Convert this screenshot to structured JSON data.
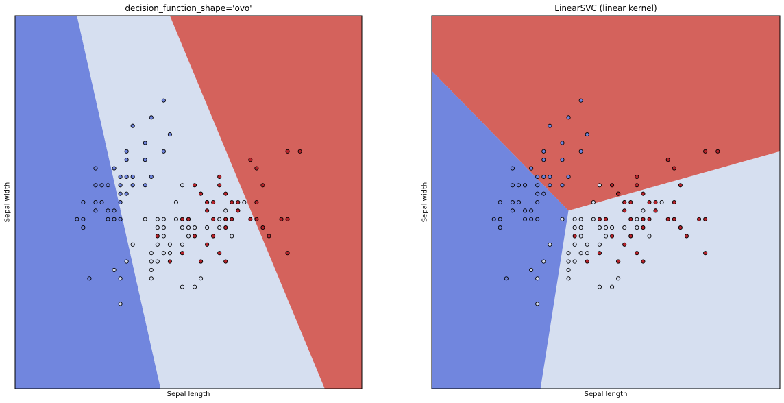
{
  "chart_data": [
    {
      "type": "scatter",
      "title": "decision_function_shape='ovo'",
      "xlabel": "Sepal length",
      "ylabel": "Sepal width",
      "xlim": [
        3.3,
        8.9
      ],
      "ylim": [
        1.0,
        5.4
      ],
      "grid": false,
      "region_colors": {
        "0": "#7186de",
        "1": "#d6dff0",
        "2": "#d4625c"
      },
      "boundaries": {
        "class0_class1": [
          [
            4.3,
            5.4
          ],
          [
            5.65,
            1.0
          ]
        ],
        "class1_class2": [
          [
            5.8,
            5.4
          ],
          [
            8.3,
            1.0
          ]
        ]
      },
      "series": [
        {
          "class": 0,
          "color": "#6f84dc",
          "points": [
            [
              4.3,
              3.0
            ],
            [
              4.4,
              2.9
            ],
            [
              4.4,
              3.0
            ],
            [
              4.4,
              3.2
            ],
            [
              4.5,
              2.3
            ],
            [
              4.6,
              3.1
            ],
            [
              4.6,
              3.2
            ],
            [
              4.6,
              3.4
            ],
            [
              4.6,
              3.6
            ],
            [
              4.7,
              3.2
            ],
            [
              4.7,
              3.4
            ],
            [
              4.8,
              3.0
            ],
            [
              4.8,
              3.1
            ],
            [
              4.8,
              3.4
            ],
            [
              4.9,
              3.0
            ],
            [
              4.9,
              3.1
            ],
            [
              4.9,
              3.6
            ],
            [
              5.0,
              3.0
            ],
            [
              5.0,
              3.2
            ],
            [
              5.0,
              3.3
            ],
            [
              5.0,
              3.4
            ],
            [
              5.0,
              3.5
            ],
            [
              5.1,
              3.3
            ],
            [
              5.1,
              3.5
            ],
            [
              5.1,
              3.7
            ],
            [
              5.1,
              3.8
            ],
            [
              5.2,
              3.4
            ],
            [
              5.2,
              3.5
            ],
            [
              5.4,
              3.4
            ],
            [
              5.4,
              3.7
            ],
            [
              5.4,
              3.9
            ],
            [
              5.5,
              3.5
            ],
            [
              5.5,
              4.2
            ],
            [
              5.7,
              3.8
            ],
            [
              5.7,
              4.4
            ],
            [
              5.8,
              4.0
            ],
            [
              5.2,
              4.1
            ]
          ]
        },
        {
          "class": 1,
          "color": "#d3dbee",
          "points": [
            [
              4.9,
              2.4
            ],
            [
              5.0,
              2.0
            ],
            [
              5.0,
              2.3
            ],
            [
              5.1,
              2.5
            ],
            [
              5.2,
              2.7
            ],
            [
              5.4,
              3.0
            ],
            [
              5.5,
              2.3
            ],
            [
              5.5,
              2.4
            ],
            [
              5.5,
              2.5
            ],
            [
              5.5,
              2.6
            ],
            [
              5.6,
              2.5
            ],
            [
              5.6,
              2.7
            ],
            [
              5.6,
              2.9
            ],
            [
              5.6,
              3.0
            ],
            [
              5.7,
              2.6
            ],
            [
              5.7,
              2.8
            ],
            [
              5.7,
              2.9
            ],
            [
              5.7,
              3.0
            ],
            [
              5.8,
              2.6
            ],
            [
              5.8,
              2.7
            ],
            [
              5.9,
              3.0
            ],
            [
              5.9,
              3.2
            ],
            [
              6.0,
              2.2
            ],
            [
              6.0,
              2.7
            ],
            [
              6.0,
              2.9
            ],
            [
              6.0,
              3.4
            ],
            [
              6.1,
              2.8
            ],
            [
              6.1,
              2.9
            ],
            [
              6.1,
              3.0
            ],
            [
              6.2,
              2.2
            ],
            [
              6.2,
              2.9
            ],
            [
              6.3,
              2.3
            ],
            [
              6.3,
              2.5
            ],
            [
              6.3,
              3.3
            ],
            [
              6.4,
              2.9
            ],
            [
              6.4,
              3.2
            ],
            [
              6.5,
              2.8
            ],
            [
              6.6,
              2.9
            ],
            [
              6.6,
              3.0
            ],
            [
              6.7,
              3.0
            ],
            [
              6.7,
              3.1
            ],
            [
              6.8,
              2.8
            ],
            [
              6.9,
              3.1
            ],
            [
              7.0,
              3.2
            ]
          ]
        },
        {
          "class": 2,
          "color": "#b8232b",
          "points": [
            [
              5.6,
              2.8
            ],
            [
              5.8,
              2.5
            ],
            [
              6.0,
              3.0
            ],
            [
              6.1,
              3.0
            ],
            [
              6.2,
              3.4
            ],
            [
              6.3,
              2.5
            ],
            [
              6.3,
              3.3
            ],
            [
              6.4,
              2.7
            ],
            [
              6.4,
              3.1
            ],
            [
              6.4,
              3.2
            ],
            [
              6.5,
              2.8
            ],
            [
              6.5,
              3.2
            ],
            [
              6.7,
              2.5
            ],
            [
              6.7,
              3.0
            ],
            [
              6.7,
              3.3
            ],
            [
              6.8,
              3.2
            ],
            [
              6.9,
              3.1
            ],
            [
              7.1,
              3.0
            ],
            [
              7.2,
              3.0
            ],
            [
              7.2,
              3.6
            ],
            [
              7.3,
              2.9
            ],
            [
              7.6,
              3.0
            ],
            [
              7.7,
              2.6
            ],
            [
              7.7,
              3.8
            ],
            [
              7.9,
              3.8
            ],
            [
              6.5,
              3.0
            ],
            [
              6.6,
              2.6
            ],
            [
              6.9,
              3.2
            ],
            [
              7.4,
              2.8
            ],
            [
              7.7,
              3.0
            ],
            [
              6.8,
              3.0
            ],
            [
              6.2,
              2.8
            ],
            [
              6.7,
              2.9
            ],
            [
              6.0,
              2.6
            ],
            [
              6.6,
              3.4
            ],
            [
              7.2,
              3.2
            ],
            [
              7.3,
              3.4
            ],
            [
              7.1,
              3.7
            ],
            [
              6.6,
              3.5
            ]
          ]
        }
      ]
    },
    {
      "type": "scatter",
      "title": "LinearSVC (linear kernel)",
      "xlabel": "Sepal length",
      "ylabel": "Sepal width",
      "xlim": [
        3.3,
        8.9
      ],
      "ylim": [
        1.0,
        5.4
      ],
      "grid": false,
      "region_colors": {
        "0": "#7186de",
        "1": "#d6dff0",
        "2": "#d4625c"
      },
      "boundaries": {
        "junction": [
          5.5,
          3.1
        ],
        "class0_class2": [
          [
            3.3,
            4.75
          ],
          [
            5.5,
            3.1
          ]
        ],
        "class1_class2": [
          [
            5.5,
            3.1
          ],
          [
            8.9,
            3.8
          ]
        ],
        "class0_class1": [
          [
            5.5,
            3.1
          ],
          [
            5.05,
            1.0
          ]
        ]
      },
      "series": [
        {
          "class": 0,
          "color": "#6f84dc",
          "points": [
            [
              4.3,
              3.0
            ],
            [
              4.4,
              2.9
            ],
            [
              4.4,
              3.0
            ],
            [
              4.4,
              3.2
            ],
            [
              4.5,
              2.3
            ],
            [
              4.6,
              3.1
            ],
            [
              4.6,
              3.2
            ],
            [
              4.6,
              3.4
            ],
            [
              4.6,
              3.6
            ],
            [
              4.7,
              3.2
            ],
            [
              4.7,
              3.4
            ],
            [
              4.8,
              3.0
            ],
            [
              4.8,
              3.1
            ],
            [
              4.8,
              3.4
            ],
            [
              4.9,
              3.0
            ],
            [
              4.9,
              3.1
            ],
            [
              4.9,
              3.6
            ],
            [
              5.0,
              3.0
            ],
            [
              5.0,
              3.2
            ],
            [
              5.0,
              3.3
            ],
            [
              5.0,
              3.4
            ],
            [
              5.0,
              3.5
            ],
            [
              5.1,
              3.3
            ],
            [
              5.1,
              3.5
            ],
            [
              5.1,
              3.7
            ],
            [
              5.1,
              3.8
            ],
            [
              5.2,
              3.4
            ],
            [
              5.2,
              3.5
            ],
            [
              5.4,
              3.4
            ],
            [
              5.4,
              3.7
            ],
            [
              5.4,
              3.9
            ],
            [
              5.5,
              3.5
            ],
            [
              5.5,
              4.2
            ],
            [
              5.7,
              3.8
            ],
            [
              5.7,
              4.4
            ],
            [
              5.8,
              4.0
            ],
            [
              5.2,
              4.1
            ]
          ]
        },
        {
          "class": 1,
          "color": "#d3dbee",
          "points": [
            [
              4.9,
              2.4
            ],
            [
              5.0,
              2.0
            ],
            [
              5.0,
              2.3
            ],
            [
              5.1,
              2.5
            ],
            [
              5.2,
              2.7
            ],
            [
              5.4,
              3.0
            ],
            [
              5.5,
              2.3
            ],
            [
              5.5,
              2.4
            ],
            [
              5.5,
              2.5
            ],
            [
              5.5,
              2.6
            ],
            [
              5.6,
              2.5
            ],
            [
              5.6,
              2.7
            ],
            [
              5.6,
              2.9
            ],
            [
              5.6,
              3.0
            ],
            [
              5.7,
              2.6
            ],
            [
              5.7,
              2.8
            ],
            [
              5.7,
              2.9
            ],
            [
              5.7,
              3.0
            ],
            [
              5.8,
              2.6
            ],
            [
              5.8,
              2.7
            ],
            [
              5.9,
              3.0
            ],
            [
              5.9,
              3.2
            ],
            [
              6.0,
              2.2
            ],
            [
              6.0,
              2.7
            ],
            [
              6.0,
              2.9
            ],
            [
              6.0,
              3.4
            ],
            [
              6.1,
              2.8
            ],
            [
              6.1,
              2.9
            ],
            [
              6.1,
              3.0
            ],
            [
              6.2,
              2.2
            ],
            [
              6.2,
              2.9
            ],
            [
              6.3,
              2.3
            ],
            [
              6.3,
              2.5
            ],
            [
              6.3,
              3.3
            ],
            [
              6.4,
              2.9
            ],
            [
              6.4,
              3.2
            ],
            [
              6.5,
              2.8
            ],
            [
              6.6,
              2.9
            ],
            [
              6.6,
              3.0
            ],
            [
              6.7,
              3.0
            ],
            [
              6.7,
              3.1
            ],
            [
              6.8,
              2.8
            ],
            [
              6.9,
              3.1
            ],
            [
              7.0,
              3.2
            ]
          ]
        },
        {
          "class": 2,
          "color": "#b8232b",
          "points": [
            [
              5.6,
              2.8
            ],
            [
              5.8,
              2.5
            ],
            [
              6.0,
              3.0
            ],
            [
              6.1,
              3.0
            ],
            [
              6.2,
              3.4
            ],
            [
              6.3,
              2.5
            ],
            [
              6.3,
              3.3
            ],
            [
              6.4,
              2.7
            ],
            [
              6.4,
              3.1
            ],
            [
              6.4,
              3.2
            ],
            [
              6.5,
              2.8
            ],
            [
              6.5,
              3.2
            ],
            [
              6.7,
              2.5
            ],
            [
              6.7,
              3.0
            ],
            [
              6.7,
              3.3
            ],
            [
              6.8,
              3.2
            ],
            [
              6.9,
              3.1
            ],
            [
              7.1,
              3.0
            ],
            [
              7.2,
              3.0
            ],
            [
              7.2,
              3.6
            ],
            [
              7.3,
              2.9
            ],
            [
              7.6,
              3.0
            ],
            [
              7.7,
              2.6
            ],
            [
              7.7,
              3.8
            ],
            [
              7.9,
              3.8
            ],
            [
              6.5,
              3.0
            ],
            [
              6.6,
              2.6
            ],
            [
              6.9,
              3.2
            ],
            [
              7.4,
              2.8
            ],
            [
              7.7,
              3.0
            ],
            [
              6.8,
              3.0
            ],
            [
              6.2,
              2.8
            ],
            [
              6.7,
              2.9
            ],
            [
              6.0,
              2.6
            ],
            [
              6.6,
              3.4
            ],
            [
              7.2,
              3.2
            ],
            [
              7.3,
              3.4
            ],
            [
              7.1,
              3.7
            ],
            [
              6.6,
              3.5
            ]
          ]
        }
      ]
    }
  ]
}
